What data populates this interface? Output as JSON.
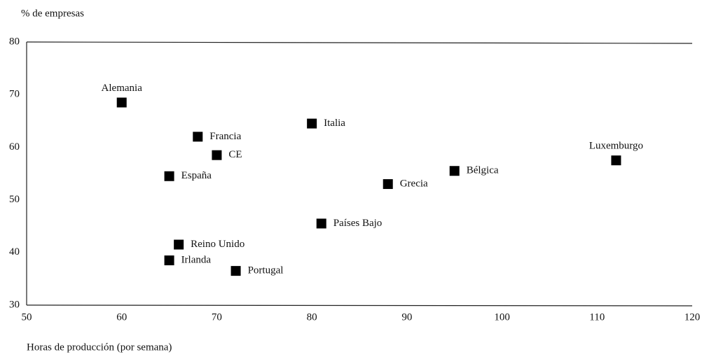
{
  "chart_data": {
    "type": "scatter",
    "y_label": "% de empresas",
    "x_label": "Horas de producción (por semana)",
    "point_labels": [
      "Alemania",
      "Francia",
      "CE",
      "España",
      "Italia",
      "Grecia",
      "Bélgica",
      "Luxemburgo",
      "Países Bajo",
      "Reino Unido",
      "Irlanda",
      "Portugal"
    ],
    "x": [
      60,
      68,
      70,
      65,
      80,
      88,
      95,
      112,
      81,
      66,
      65,
      72
    ],
    "values": [
      68.5,
      62,
      58.5,
      54.5,
      64.5,
      53,
      55.5,
      57.5,
      45.5,
      41.5,
      38.5,
      36.5
    ],
    "color": "#000000",
    "xlim": [
      50,
      120
    ],
    "xticks": [
      50,
      60,
      70,
      80,
      90,
      100,
      110,
      120
    ],
    "ylim": [
      30,
      80
    ],
    "yticks": [
      30,
      40,
      50,
      60,
      70,
      80
    ],
    "grid": false
  }
}
